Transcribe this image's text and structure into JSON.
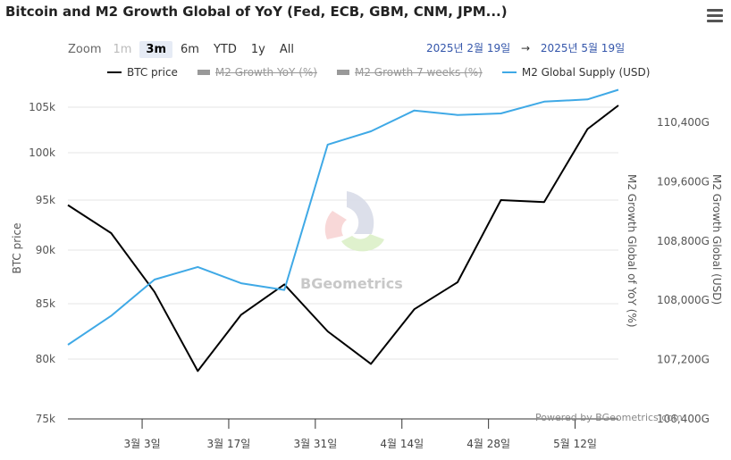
{
  "title": "Bitcoin and M2 Growth Global of YoY (Fed, ECB, GBM, CNM, JPM...)",
  "zoom": {
    "label": "Zoom",
    "buttons": [
      {
        "label": "1m",
        "state": "disabled"
      },
      {
        "label": "3m",
        "state": "active"
      },
      {
        "label": "6m",
        "state": "normal"
      },
      {
        "label": "YTD",
        "state": "normal"
      },
      {
        "label": "1y",
        "state": "normal"
      },
      {
        "label": "All",
        "state": "normal"
      }
    ]
  },
  "range": {
    "from": "2025년 2월 19일",
    "arrow": "→",
    "to": "2025년 5월 19일"
  },
  "legend": [
    {
      "name": "BTC price",
      "color": "#000000",
      "hidden": false
    },
    {
      "name": "M2 Growth YoY (%)",
      "color": "#999999",
      "hidden": true
    },
    {
      "name": "M2 Growth 7 weeks (%)",
      "color": "#999999",
      "hidden": true
    },
    {
      "name": "M2 Global Supply (USD)",
      "color": "#3fa9e6",
      "hidden": false
    }
  ],
  "credit": "Powered by BGeometrics.com",
  "watermark": "BGeometrics",
  "chart_data": {
    "type": "line",
    "x_ticks": [
      "3월 3일",
      "3월 17일",
      "3월 31일",
      "4월 14일",
      "4월 28일",
      "5월 12일"
    ],
    "y_left": {
      "label": "BTC price",
      "ticks": [
        "75k",
        "80k",
        "85k",
        "90k",
        "95k",
        "100k",
        "105k"
      ],
      "range": [
        75000,
        107000
      ]
    },
    "y_mid": {
      "label": "M2 Growth Global of YoY (%)"
    },
    "y_right": {
      "label": "M2 Growth Global (USD)",
      "ticks": [
        "106,400G",
        "107,200G",
        "108,000G",
        "108,800G",
        "109,600G",
        "110,400G"
      ],
      "range": [
        106400,
        111000
      ]
    },
    "series": [
      {
        "name": "BTC price",
        "axis": "left",
        "color": "#000000",
        "x": [
          "2025-02-19",
          "2025-02-26",
          "2025-03-05",
          "2025-03-12",
          "2025-03-19",
          "2025-03-26",
          "2025-04-02",
          "2025-04-09",
          "2025-04-16",
          "2025-04-23",
          "2025-04-30",
          "2025-05-07",
          "2025-05-14",
          "2025-05-19"
        ],
        "values": [
          94500,
          91700,
          86100,
          79000,
          84000,
          86800,
          82500,
          79600,
          84500,
          87000,
          95000,
          94800,
          102600,
          105200
        ]
      },
      {
        "name": "M2 Global Supply (USD)",
        "axis": "right",
        "color": "#3fa9e6",
        "x": [
          "2025-02-19",
          "2025-02-26",
          "2025-03-05",
          "2025-03-12",
          "2025-03-19",
          "2025-03-26",
          "2025-04-02",
          "2025-04-09",
          "2025-04-16",
          "2025-04-23",
          "2025-04-30",
          "2025-05-07",
          "2025-05-14",
          "2025-05-19"
        ],
        "values": [
          107400,
          107790,
          108280,
          108450,
          108230,
          108140,
          110100,
          110280,
          110560,
          110500,
          110520,
          110680,
          110710,
          110840
        ]
      }
    ]
  }
}
